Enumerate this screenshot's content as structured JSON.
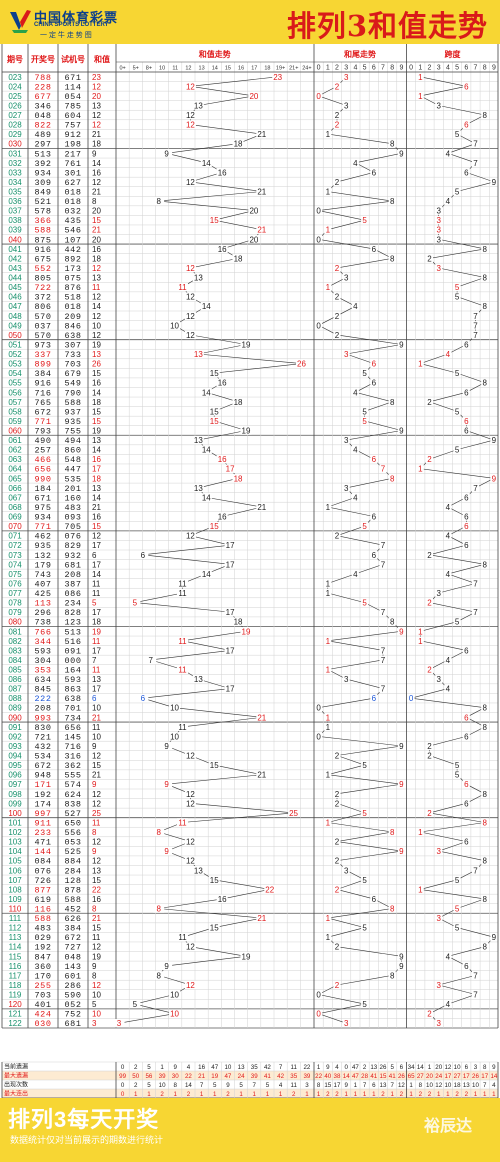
{
  "header": {
    "logo_cn": "中国体育彩票",
    "logo_en": "CHINA SPORTS LOTTERY",
    "logo_slogan": "一 定 牛 走 势 图",
    "title": "排列3和值走势"
  },
  "footer": {
    "title": "排列3每天开奖",
    "note": "数据统计仅对当前展示的期数进行统计",
    "brand": "裕辰达"
  },
  "colors": {
    "red": "#e0191a",
    "green": "#17906b",
    "blue": "#1c56d8",
    "grid": "#d2d2d2",
    "text": "#222222"
  },
  "chart_data": {
    "type": "table",
    "columns": {
      "issue": "期号",
      "draw": "开奖号",
      "trial": "试机号",
      "sum": "和值",
      "sum_trend": "和值走势",
      "tail_trend": "和尾走势",
      "span_trend": "跨度"
    },
    "sum_bins": [
      "0+",
      "5+",
      "8+",
      "10",
      "11",
      "12",
      "13",
      "14",
      "15",
      "16",
      "17",
      "18",
      "19+",
      "21+",
      "24+"
    ],
    "digits": [
      "0",
      "1",
      "2",
      "3",
      "4",
      "5",
      "6",
      "7",
      "8",
      "9"
    ],
    "rows": [
      {
        "issue": "023",
        "draw": "788",
        "trial": "671",
        "sum": 23,
        "c": "r"
      },
      {
        "issue": "024",
        "draw": "228",
        "trial": "114",
        "sum": 12,
        "c": "r"
      },
      {
        "issue": "025",
        "draw": "677",
        "trial": "054",
        "sum": 20,
        "c": "r"
      },
      {
        "issue": "026",
        "draw": "346",
        "trial": "785",
        "sum": 13,
        "c": "n"
      },
      {
        "issue": "027",
        "draw": "048",
        "trial": "604",
        "sum": 12,
        "c": "n"
      },
      {
        "issue": "028",
        "draw": "822",
        "trial": "757",
        "sum": 12,
        "c": "r"
      },
      {
        "issue": "029",
        "draw": "489",
        "trial": "912",
        "sum": 21,
        "c": "n"
      },
      {
        "issue": "030",
        "draw": "297",
        "trial": "198",
        "sum": 18,
        "c": "n"
      },
      {
        "issue": "031",
        "draw": "513",
        "trial": "217",
        "sum": 9,
        "c": "n"
      },
      {
        "issue": "032",
        "draw": "392",
        "trial": "761",
        "sum": 14,
        "c": "n"
      },
      {
        "issue": "033",
        "draw": "934",
        "trial": "301",
        "sum": 16,
        "c": "n"
      },
      {
        "issue": "034",
        "draw": "309",
        "trial": "627",
        "sum": 12,
        "c": "n"
      },
      {
        "issue": "035",
        "draw": "849",
        "trial": "018",
        "sum": 21,
        "c": "n"
      },
      {
        "issue": "036",
        "draw": "521",
        "trial": "018",
        "sum": 8,
        "c": "n"
      },
      {
        "issue": "037",
        "draw": "578",
        "trial": "032",
        "sum": 20,
        "c": "n"
      },
      {
        "issue": "038",
        "draw": "366",
        "trial": "435",
        "sum": 15,
        "c": "r"
      },
      {
        "issue": "039",
        "draw": "588",
        "trial": "546",
        "sum": 21,
        "c": "r"
      },
      {
        "issue": "040",
        "draw": "875",
        "trial": "107",
        "sum": 20,
        "c": "n"
      },
      {
        "issue": "041",
        "draw": "916",
        "trial": "442",
        "sum": 16,
        "c": "n"
      },
      {
        "issue": "042",
        "draw": "675",
        "trial": "892",
        "sum": 18,
        "c": "n"
      },
      {
        "issue": "043",
        "draw": "552",
        "trial": "173",
        "sum": 12,
        "c": "r"
      },
      {
        "issue": "044",
        "draw": "805",
        "trial": "075",
        "sum": 13,
        "c": "n"
      },
      {
        "issue": "045",
        "draw": "722",
        "trial": "876",
        "sum": 11,
        "c": "r"
      },
      {
        "issue": "046",
        "draw": "372",
        "trial": "518",
        "sum": 12,
        "c": "n"
      },
      {
        "issue": "047",
        "draw": "806",
        "trial": "018",
        "sum": 14,
        "c": "n"
      },
      {
        "issue": "048",
        "draw": "570",
        "trial": "209",
        "sum": 12,
        "c": "n"
      },
      {
        "issue": "049",
        "draw": "037",
        "trial": "846",
        "sum": 10,
        "c": "n"
      },
      {
        "issue": "050",
        "draw": "570",
        "trial": "638",
        "sum": 12,
        "c": "n"
      },
      {
        "issue": "051",
        "draw": "973",
        "trial": "307",
        "sum": 19,
        "c": "n"
      },
      {
        "issue": "052",
        "draw": "337",
        "trial": "733",
        "sum": 13,
        "c": "r"
      },
      {
        "issue": "053",
        "draw": "899",
        "trial": "703",
        "sum": 26,
        "c": "r"
      },
      {
        "issue": "054",
        "draw": "384",
        "trial": "679",
        "sum": 15,
        "c": "n"
      },
      {
        "issue": "055",
        "draw": "916",
        "trial": "549",
        "sum": 16,
        "c": "n"
      },
      {
        "issue": "056",
        "draw": "716",
        "trial": "790",
        "sum": 14,
        "c": "n"
      },
      {
        "issue": "057",
        "draw": "765",
        "trial": "588",
        "sum": 18,
        "c": "n"
      },
      {
        "issue": "058",
        "draw": "672",
        "trial": "937",
        "sum": 15,
        "c": "n"
      },
      {
        "issue": "059",
        "draw": "771",
        "trial": "935",
        "sum": 15,
        "c": "r"
      },
      {
        "issue": "060",
        "draw": "793",
        "trial": "755",
        "sum": 19,
        "c": "n"
      },
      {
        "issue": "061",
        "draw": "490",
        "trial": "494",
        "sum": 13,
        "c": "n"
      },
      {
        "issue": "062",
        "draw": "257",
        "trial": "860",
        "sum": 14,
        "c": "n"
      },
      {
        "issue": "063",
        "draw": "466",
        "trial": "548",
        "sum": 16,
        "c": "r"
      },
      {
        "issue": "064",
        "draw": "656",
        "trial": "447",
        "sum": 17,
        "c": "r"
      },
      {
        "issue": "065",
        "draw": "990",
        "trial": "535",
        "sum": 18,
        "c": "r"
      },
      {
        "issue": "066",
        "draw": "184",
        "trial": "201",
        "sum": 13,
        "c": "n"
      },
      {
        "issue": "067",
        "draw": "671",
        "trial": "160",
        "sum": 14,
        "c": "n"
      },
      {
        "issue": "068",
        "draw": "975",
        "trial": "483",
        "sum": 21,
        "c": "n"
      },
      {
        "issue": "069",
        "draw": "934",
        "trial": "093",
        "sum": 16,
        "c": "n"
      },
      {
        "issue": "070",
        "draw": "771",
        "trial": "705",
        "sum": 15,
        "c": "r"
      },
      {
        "issue": "071",
        "draw": "462",
        "trial": "076",
        "sum": 12,
        "c": "n"
      },
      {
        "issue": "072",
        "draw": "935",
        "trial": "829",
        "sum": 17,
        "c": "n"
      },
      {
        "issue": "073",
        "draw": "132",
        "trial": "932",
        "sum": 6,
        "c": "n"
      },
      {
        "issue": "074",
        "draw": "179",
        "trial": "681",
        "sum": 17,
        "c": "n"
      },
      {
        "issue": "075",
        "draw": "743",
        "trial": "208",
        "sum": 14,
        "c": "n"
      },
      {
        "issue": "076",
        "draw": "407",
        "trial": "387",
        "sum": 11,
        "c": "n"
      },
      {
        "issue": "077",
        "draw": "425",
        "trial": "086",
        "sum": 11,
        "c": "n"
      },
      {
        "issue": "078",
        "draw": "113",
        "trial": "234",
        "sum": 5,
        "c": "r"
      },
      {
        "issue": "079",
        "draw": "296",
        "trial": "828",
        "sum": 17,
        "c": "n"
      },
      {
        "issue": "080",
        "draw": "738",
        "trial": "123",
        "sum": 18,
        "c": "n"
      },
      {
        "issue": "081",
        "draw": "766",
        "trial": "513",
        "sum": 19,
        "c": "r"
      },
      {
        "issue": "082",
        "draw": "344",
        "trial": "516",
        "sum": 11,
        "c": "r"
      },
      {
        "issue": "083",
        "draw": "593",
        "trial": "091",
        "sum": 17,
        "c": "n"
      },
      {
        "issue": "084",
        "draw": "304",
        "trial": "000",
        "sum": 7,
        "c": "n"
      },
      {
        "issue": "085",
        "draw": "353",
        "trial": "164",
        "sum": 11,
        "c": "r"
      },
      {
        "issue": "086",
        "draw": "634",
        "trial": "593",
        "sum": 13,
        "c": "n"
      },
      {
        "issue": "087",
        "draw": "845",
        "trial": "863",
        "sum": 17,
        "c": "n"
      },
      {
        "issue": "088",
        "draw": "222",
        "trial": "638",
        "sum": 6,
        "c": "b"
      },
      {
        "issue": "089",
        "draw": "208",
        "trial": "701",
        "sum": 10,
        "c": "n"
      },
      {
        "issue": "090",
        "draw": "993",
        "trial": "734",
        "sum": 21,
        "c": "r"
      },
      {
        "issue": "091",
        "draw": "830",
        "trial": "656",
        "sum": 11,
        "c": "n"
      },
      {
        "issue": "092",
        "draw": "721",
        "trial": "145",
        "sum": 10,
        "c": "n"
      },
      {
        "issue": "093",
        "draw": "432",
        "trial": "716",
        "sum": 9,
        "c": "n"
      },
      {
        "issue": "094",
        "draw": "534",
        "trial": "316",
        "sum": 12,
        "c": "n"
      },
      {
        "issue": "095",
        "draw": "672",
        "trial": "362",
        "sum": 15,
        "c": "n"
      },
      {
        "issue": "096",
        "draw": "948",
        "trial": "555",
        "sum": 21,
        "c": "n"
      },
      {
        "issue": "097",
        "draw": "171",
        "trial": "574",
        "sum": 9,
        "c": "r"
      },
      {
        "issue": "098",
        "draw": "192",
        "trial": "624",
        "sum": 12,
        "c": "n"
      },
      {
        "issue": "099",
        "draw": "174",
        "trial": "838",
        "sum": 12,
        "c": "n"
      },
      {
        "issue": "100",
        "draw": "997",
        "trial": "527",
        "sum": 25,
        "c": "r"
      },
      {
        "issue": "101",
        "draw": "911",
        "trial": "650",
        "sum": 11,
        "c": "r"
      },
      {
        "issue": "102",
        "draw": "233",
        "trial": "556",
        "sum": 8,
        "c": "r"
      },
      {
        "issue": "103",
        "draw": "471",
        "trial": "053",
        "sum": 12,
        "c": "n"
      },
      {
        "issue": "104",
        "draw": "144",
        "trial": "525",
        "sum": 9,
        "c": "r"
      },
      {
        "issue": "105",
        "draw": "084",
        "trial": "884",
        "sum": 12,
        "c": "n"
      },
      {
        "issue": "106",
        "draw": "076",
        "trial": "284",
        "sum": 13,
        "c": "n"
      },
      {
        "issue": "107",
        "draw": "726",
        "trial": "128",
        "sum": 15,
        "c": "n"
      },
      {
        "issue": "108",
        "draw": "877",
        "trial": "878",
        "sum": 22,
        "c": "r"
      },
      {
        "issue": "109",
        "draw": "619",
        "trial": "588",
        "sum": 16,
        "c": "n"
      },
      {
        "issue": "110",
        "draw": "116",
        "trial": "452",
        "sum": 8,
        "c": "r"
      },
      {
        "issue": "111",
        "draw": "588",
        "trial": "626",
        "sum": 21,
        "c": "r"
      },
      {
        "issue": "112",
        "draw": "483",
        "trial": "384",
        "sum": 15,
        "c": "n"
      },
      {
        "issue": "113",
        "draw": "029",
        "trial": "672",
        "sum": 11,
        "c": "n"
      },
      {
        "issue": "114",
        "draw": "192",
        "trial": "727",
        "sum": 12,
        "c": "n"
      },
      {
        "issue": "115",
        "draw": "847",
        "trial": "048",
        "sum": 19,
        "c": "n"
      },
      {
        "issue": "116",
        "draw": "360",
        "trial": "143",
        "sum": 9,
        "c": "n"
      },
      {
        "issue": "117",
        "draw": "170",
        "trial": "601",
        "sum": 8,
        "c": "n"
      },
      {
        "issue": "118",
        "draw": "255",
        "trial": "286",
        "sum": 12,
        "c": "r"
      },
      {
        "issue": "119",
        "draw": "703",
        "trial": "590",
        "sum": 10,
        "c": "n"
      },
      {
        "issue": "120",
        "draw": "401",
        "trial": "052",
        "sum": 5,
        "c": "n"
      },
      {
        "issue": "121",
        "draw": "424",
        "trial": "752",
        "sum": 10,
        "c": "r"
      },
      {
        "issue": "122",
        "draw": "030",
        "trial": "681",
        "sum": 3,
        "c": "r"
      }
    ],
    "stats": [
      {
        "label": "当前遗漏",
        "c": "k",
        "sum": [
          0,
          2,
          5,
          1,
          9,
          4,
          16,
          47,
          10,
          13,
          35,
          42,
          7,
          11,
          22
        ],
        "tail": [
          1,
          9,
          4,
          0,
          47,
          2,
          13,
          26,
          5,
          6
        ],
        "span": [
          34,
          14,
          1,
          20,
          12,
          10,
          6,
          3,
          8,
          9
        ]
      },
      {
        "label": "最大遗漏",
        "c": "r",
        "sum": [
          99,
          50,
          56,
          39,
          30,
          22,
          21,
          19,
          47,
          24,
          39,
          41,
          42,
          35,
          39
        ],
        "tail": [
          22,
          40,
          38,
          14,
          47,
          28,
          41,
          15,
          41,
          26
        ],
        "span": [
          65,
          27,
          20,
          24,
          17,
          27,
          17,
          26,
          17,
          14
        ]
      },
      {
        "label": "出现次数",
        "c": "k",
        "sum": [
          0,
          2,
          5,
          10,
          8,
          14,
          7,
          5,
          9,
          5,
          7,
          5,
          4,
          11,
          3
        ],
        "tail": [
          8,
          15,
          17,
          9,
          1,
          7,
          6,
          13,
          7,
          12
        ],
        "span": [
          1,
          8,
          10,
          12,
          10,
          18,
          13,
          10,
          7,
          4
        ]
      },
      {
        "label": "最大连出",
        "c": "r",
        "sum": [
          0,
          1,
          1,
          2,
          1,
          2,
          1,
          1,
          2,
          1,
          1,
          1,
          1,
          2,
          1
        ],
        "tail": [
          1,
          2,
          2,
          1,
          1,
          1,
          1,
          2,
          1,
          2
        ],
        "span": [
          1,
          2,
          2,
          1,
          1,
          2,
          2,
          1,
          1,
          1
        ]
      }
    ]
  }
}
